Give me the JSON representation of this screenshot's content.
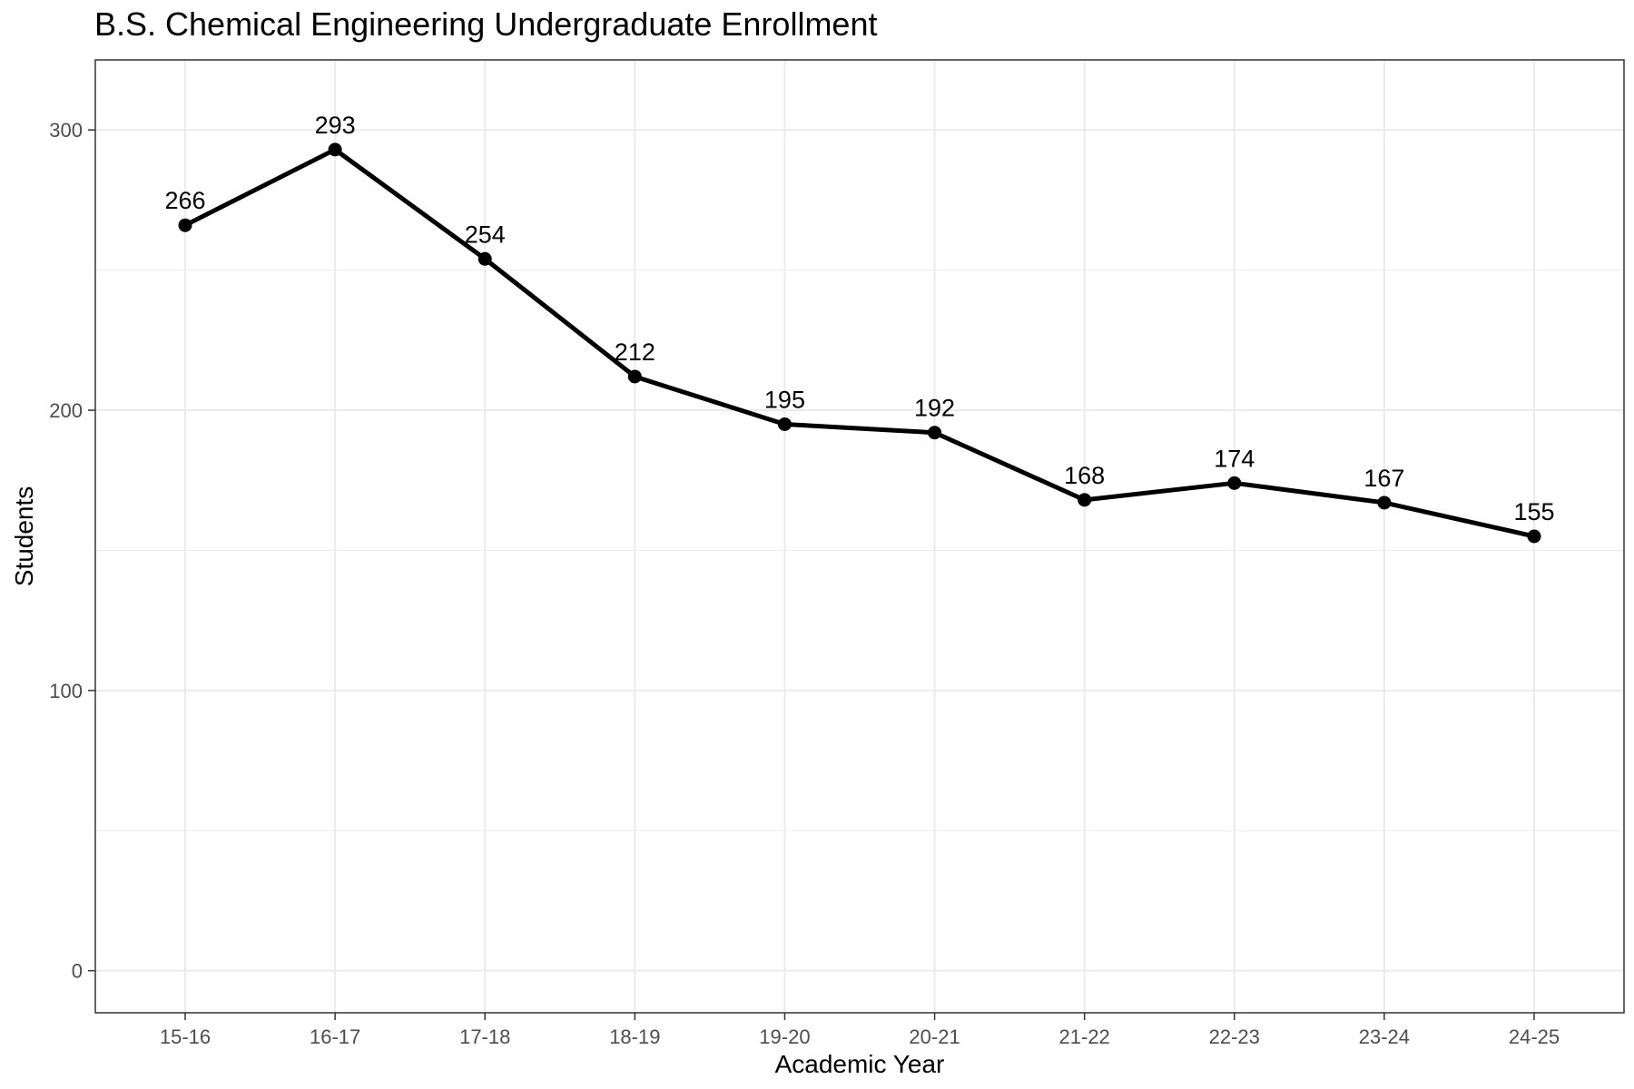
{
  "chart_data": {
    "type": "line",
    "title": "B.S. Chemical Engineering Undergraduate Enrollment",
    "xlabel": "Academic Year",
    "ylabel": "Students",
    "categories": [
      "15-16",
      "16-17",
      "17-18",
      "18-19",
      "19-20",
      "20-21",
      "21-22",
      "22-23",
      "23-24",
      "24-25"
    ],
    "series": [
      {
        "values": [
          266,
          293,
          254,
          212,
          195,
          192,
          168,
          174,
          167,
          155
        ]
      }
    ],
    "data_labels": [
      "266",
      "293",
      "254",
      "212",
      "195",
      "192",
      "168",
      "174",
      "167",
      "155"
    ],
    "y_ticks": [
      0,
      100,
      200,
      300
    ],
    "ylim": [
      -15,
      325
    ],
    "grid": true,
    "legend": "none",
    "colors": {
      "line": "#000000",
      "grid": "#ebebeb",
      "panel_border": "#333333"
    }
  }
}
